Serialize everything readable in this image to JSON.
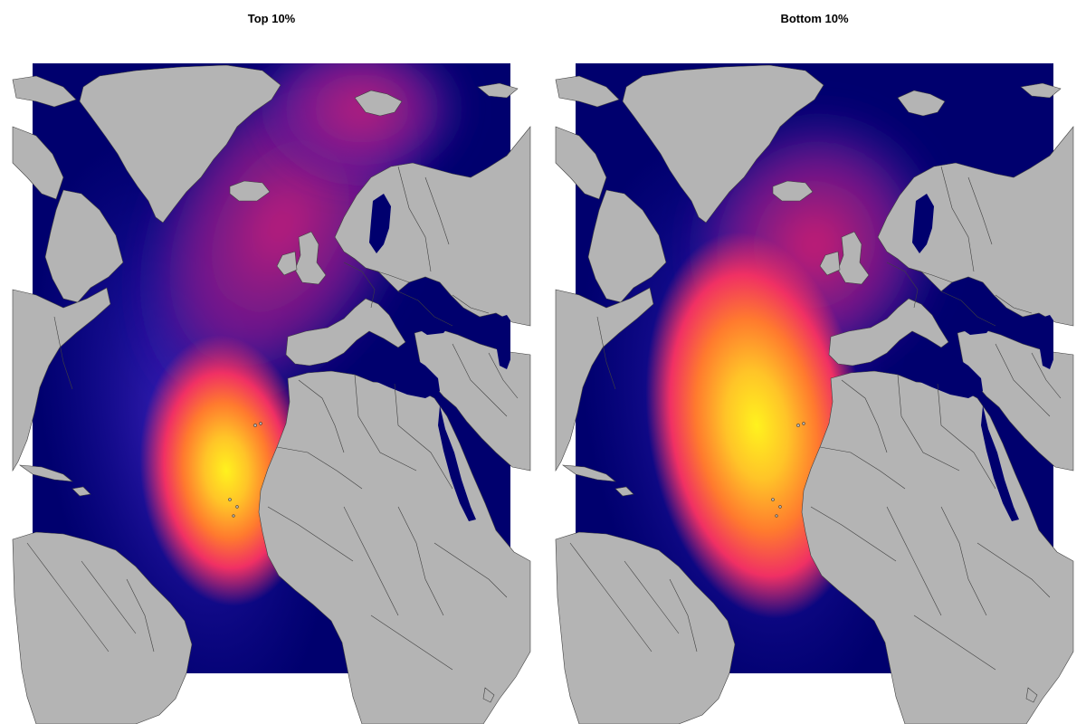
{
  "panels": [
    {
      "title": "Top 10%"
    },
    {
      "title": "Bottom 10%"
    }
  ],
  "colors": {
    "ocean_low": "#00006e",
    "scale_mid_low": "#2a1aa8",
    "scale_mid": "#8a1a8c",
    "scale_mid_high": "#e8205c",
    "scale_high": "#ff9a22",
    "scale_peak": "#fff21e",
    "land": "#b4b4b4",
    "border": "#404040",
    "background": "#ffffff"
  }
}
